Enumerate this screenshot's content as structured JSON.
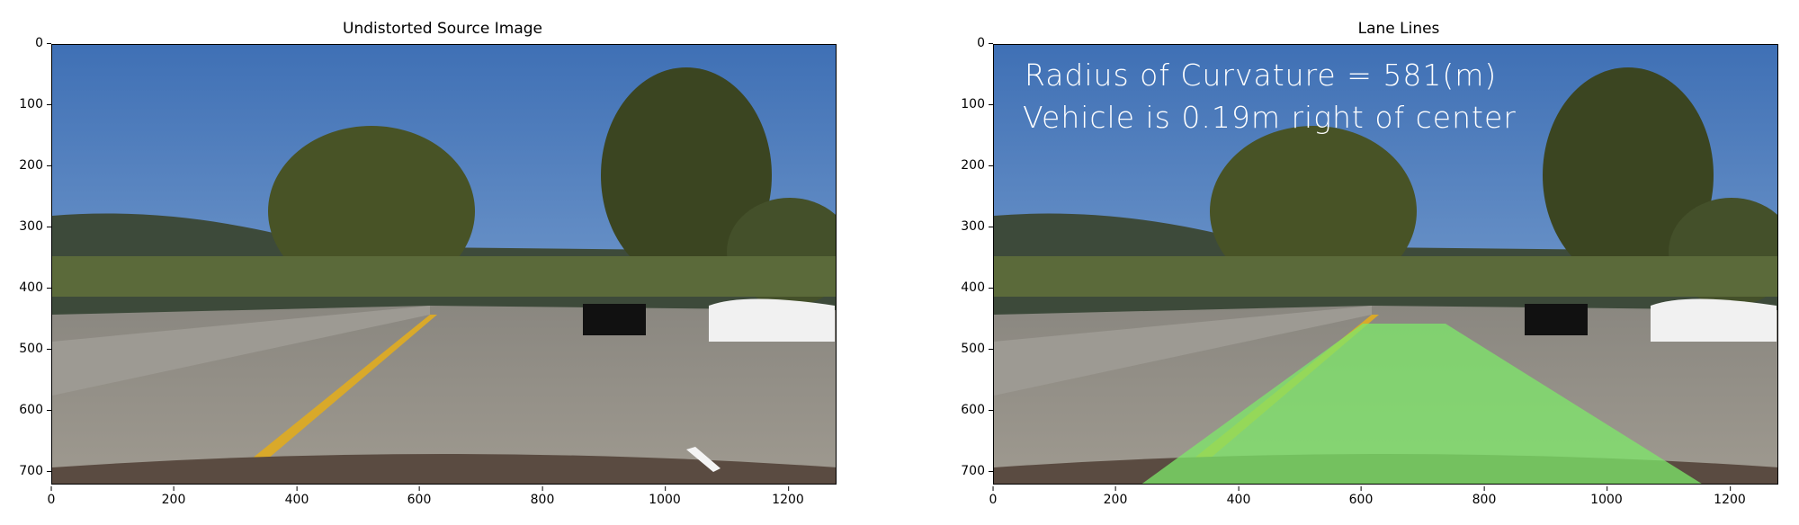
{
  "left_panel": {
    "title": "Undistorted Source Image",
    "y_ticks": [
      "0",
      "100",
      "200",
      "300",
      "400",
      "500",
      "600",
      "700"
    ],
    "x_ticks": [
      "0",
      "200",
      "400",
      "600",
      "800",
      "1000",
      "1200"
    ]
  },
  "right_panel": {
    "title": "Lane Lines",
    "overlay_line1": "Radius of Curvature = 581(m)",
    "overlay_line2": "Vehicle is 0.19m right of center",
    "y_ticks": [
      "0",
      "100",
      "200",
      "300",
      "400",
      "500",
      "600",
      "700"
    ],
    "x_ticks": [
      "0",
      "200",
      "400",
      "600",
      "800",
      "1000",
      "1200"
    ]
  },
  "colors": {
    "sky": "#5b8ac4",
    "road": "#8f8c86",
    "lane_fill": "#7ee86a",
    "yellow_line": "#d9a92a",
    "trees": "#3f4b25"
  }
}
